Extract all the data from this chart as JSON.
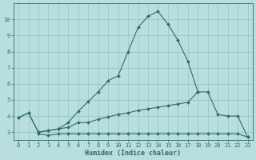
{
  "x": [
    0,
    1,
    2,
    3,
    4,
    5,
    6,
    7,
    8,
    9,
    10,
    11,
    12,
    13,
    14,
    15,
    16,
    17,
    18,
    19,
    20,
    21,
    22,
    23
  ],
  "line1_x": [
    0,
    1,
    2,
    3,
    4,
    5,
    6,
    7,
    8,
    9,
    10,
    11,
    12,
    13,
    14,
    15,
    16,
    17,
    18
  ],
  "line1_y": [
    3.9,
    4.2,
    3.0,
    3.1,
    3.2,
    3.6,
    4.3,
    4.9,
    5.5,
    6.2,
    6.5,
    8.0,
    9.5,
    10.2,
    10.5,
    9.7,
    8.7,
    7.4,
    5.5
  ],
  "line2_x": [
    0,
    1,
    2,
    3,
    4,
    5,
    6,
    7,
    8,
    9,
    10,
    11,
    12,
    13,
    14,
    15,
    16,
    17,
    18,
    19,
    20,
    21,
    22,
    23
  ],
  "line2_y": [
    3.9,
    4.2,
    3.0,
    3.1,
    3.2,
    3.3,
    3.6,
    3.6,
    3.8,
    3.95,
    4.1,
    4.2,
    4.35,
    4.45,
    4.55,
    4.65,
    4.75,
    4.85,
    5.5,
    5.5,
    4.1,
    4.0,
    4.0,
    2.7
  ],
  "line3_x": [
    2,
    3,
    4,
    5,
    6,
    7,
    8,
    9,
    10,
    11,
    12,
    13,
    14,
    15,
    16,
    17,
    18,
    19,
    20,
    21,
    22,
    23
  ],
  "line3_y": [
    2.9,
    2.8,
    2.9,
    2.9,
    2.9,
    2.9,
    2.9,
    2.9,
    2.9,
    2.9,
    2.9,
    2.9,
    2.9,
    2.9,
    2.9,
    2.9,
    2.9,
    2.9,
    2.9,
    2.9,
    2.9,
    2.7
  ],
  "color": "#2e6e62",
  "bg_color": "#b8dede",
  "grid_color": "#96c4c4",
  "xlabel": "Humidex (Indice chaleur)",
  "ylim": [
    2.5,
    11.0
  ],
  "xlim": [
    -0.5,
    23.5
  ],
  "yticks": [
    3,
    4,
    5,
    6,
    7,
    8,
    9,
    10
  ],
  "xticks": [
    0,
    1,
    2,
    3,
    4,
    5,
    6,
    7,
    8,
    9,
    10,
    11,
    12,
    13,
    14,
    15,
    16,
    17,
    18,
    19,
    20,
    21,
    22,
    23
  ],
  "marker_size": 2.0,
  "line_width": 0.8,
  "xlabel_fontsize": 6.0,
  "tick_fontsize": 5.0
}
